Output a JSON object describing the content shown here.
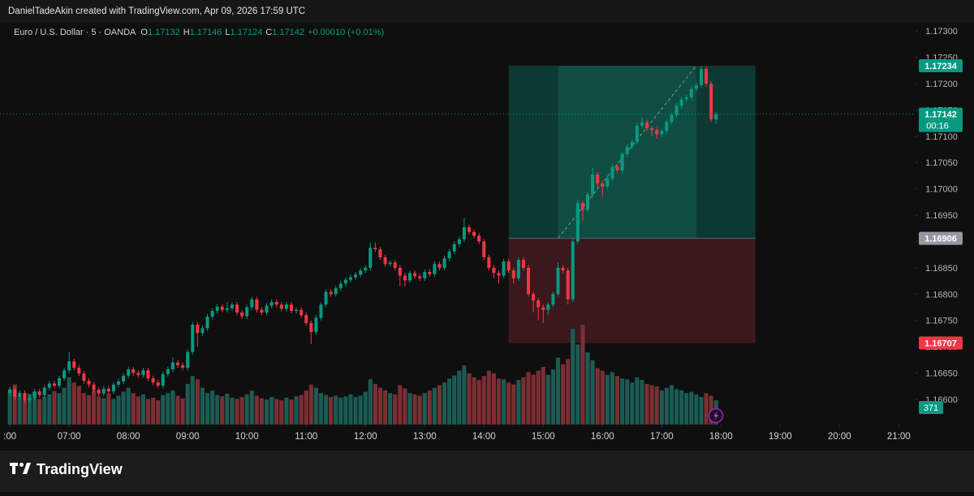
{
  "header": {
    "text": "DanielTadeAkin created with TradingView.com, Apr 09, 2026 17:59 UTC"
  },
  "chart_data": {
    "type": "candlestick",
    "symbol": "Euro / U.S. Dollar · 5 · OANDA",
    "ohlc_letters": [
      "O",
      "H",
      "L",
      "C"
    ],
    "change_label": "+0.00010 (+0.01%)",
    "countdown": "00:16",
    "up_color": "#089981",
    "down_color": "#f23645",
    "volume_up_color": "#1b5b53",
    "volume_down_color": "#7a2f33",
    "xlim": [
      350,
      1277
    ],
    "xticks": [
      {
        "value": 360,
        "label": ":00"
      },
      {
        "value": 420,
        "label": "07:00"
      },
      {
        "value": 480,
        "label": "08:00"
      },
      {
        "value": 540,
        "label": "09:00"
      },
      {
        "value": 600,
        "label": "10:00"
      },
      {
        "value": 660,
        "label": "11:00"
      },
      {
        "value": 720,
        "label": "12:00"
      },
      {
        "value": 780,
        "label": "13:00"
      },
      {
        "value": 840,
        "label": "14:00"
      },
      {
        "value": 900,
        "label": "15:00"
      },
      {
        "value": 960,
        "label": "16:00"
      },
      {
        "value": 1020,
        "label": "17:00"
      },
      {
        "value": 1080,
        "label": "18:00"
      },
      {
        "value": 1140,
        "label": "19:00"
      },
      {
        "value": 1200,
        "label": "20:00"
      },
      {
        "value": 1260,
        "label": "21:00"
      }
    ],
    "ylim": [
      1.16552,
      1.17325
    ],
    "yticks": [
      {
        "value": 1.166,
        "label": "1.16600"
      },
      {
        "value": 1.1665,
        "label": "1.16650"
      },
      {
        "value": 1.167,
        "label": "1.16700"
      },
      {
        "value": 1.1675,
        "label": "1.16750"
      },
      {
        "value": 1.168,
        "label": "1.16800"
      },
      {
        "value": 1.1685,
        "label": "1.16850"
      },
      {
        "value": 1.169,
        "label": "1.16900"
      },
      {
        "value": 1.1695,
        "label": "1.16950"
      },
      {
        "value": 1.17,
        "label": "1.17000"
      },
      {
        "value": 1.1705,
        "label": "1.17050"
      },
      {
        "value": 1.171,
        "label": "1.17100"
      },
      {
        "value": 1.1715,
        "label": "1.17150"
      },
      {
        "value": 1.172,
        "label": "1.17200"
      },
      {
        "value": 1.1725,
        "label": "1.17250"
      },
      {
        "value": 1.173,
        "label": "1.17300"
      }
    ],
    "volume_lim": [
      0,
      6200
    ],
    "position": {
      "entry": 1.16906,
      "target": 1.17234,
      "stop": 1.16707,
      "start": 865,
      "end": 1115,
      "filled_start": 915,
      "filled_end": 1055,
      "profit_color": "#0c3a33",
      "profit_fill_color": "#0f4d42",
      "loss_color": "#3a181c",
      "entry_color": "#5d606b"
    },
    "x": [
      360,
      365,
      370,
      375,
      380,
      385,
      390,
      395,
      400,
      405,
      410,
      415,
      420,
      425,
      430,
      435,
      440,
      445,
      450,
      455,
      460,
      465,
      470,
      475,
      480,
      485,
      490,
      495,
      500,
      505,
      510,
      515,
      520,
      525,
      530,
      535,
      540,
      545,
      550,
      555,
      560,
      565,
      570,
      575,
      580,
      585,
      590,
      595,
      600,
      605,
      610,
      615,
      620,
      625,
      630,
      635,
      640,
      645,
      650,
      655,
      660,
      665,
      670,
      675,
      680,
      685,
      690,
      695,
      700,
      705,
      710,
      715,
      720,
      725,
      730,
      735,
      740,
      745,
      750,
      755,
      760,
      765,
      770,
      775,
      780,
      785,
      790,
      795,
      800,
      805,
      810,
      815,
      820,
      825,
      830,
      835,
      840,
      845,
      850,
      855,
      860,
      865,
      870,
      875,
      880,
      885,
      890,
      895,
      900,
      905,
      910,
      915,
      920,
      925,
      930,
      935,
      940,
      945,
      950,
      955,
      960,
      965,
      970,
      975,
      980,
      985,
      990,
      995,
      1000,
      1005,
      1010,
      1015,
      1020,
      1025,
      1030,
      1035,
      1040,
      1045,
      1050,
      1055,
      1060,
      1065,
      1070,
      1075
    ],
    "ohlc": [
      [
        1.16612,
        1.16624,
        1.16607,
        1.16619
      ],
      [
        1.16619,
        1.16624,
        1.166,
        1.16605
      ],
      [
        1.16605,
        1.16617,
        1.166,
        1.16612
      ],
      [
        1.16612,
        1.16617,
        1.16593,
        1.16598
      ],
      [
        1.16598,
        1.16608,
        1.16593,
        1.16603
      ],
      [
        1.16603,
        1.1662,
        1.16598,
        1.16615
      ],
      [
        1.16615,
        1.1662,
        1.16603,
        1.16608
      ],
      [
        1.16608,
        1.16627,
        1.16603,
        1.16622
      ],
      [
        1.16622,
        1.16635,
        1.16617,
        1.1663
      ],
      [
        1.1663,
        1.16635,
        1.16621,
        1.16626
      ],
      [
        1.16626,
        1.16645,
        1.16621,
        1.1664
      ],
      [
        1.1664,
        1.1666,
        1.16635,
        1.16655
      ],
      [
        1.16655,
        1.1669,
        1.1665,
        1.16672
      ],
      [
        1.16672,
        1.16677,
        1.16655,
        1.1666
      ],
      [
        1.1666,
        1.16665,
        1.16644,
        1.16649
      ],
      [
        1.16649,
        1.16654,
        1.1663,
        1.16635
      ],
      [
        1.16635,
        1.1664,
        1.16623,
        1.16628
      ],
      [
        1.16628,
        1.16633,
        1.16613,
        1.16618
      ],
      [
        1.16618,
        1.16623,
        1.16606,
        1.16611
      ],
      [
        1.16611,
        1.16625,
        1.16606,
        1.1662
      ],
      [
        1.1662,
        1.16625,
        1.1661,
        1.16615
      ],
      [
        1.16615,
        1.16633,
        1.1661,
        1.16628
      ],
      [
        1.16628,
        1.16639,
        1.16623,
        1.16634
      ],
      [
        1.16634,
        1.1665,
        1.16629,
        1.16645
      ],
      [
        1.16645,
        1.16662,
        1.1664,
        1.16657
      ],
      [
        1.16657,
        1.16662,
        1.16645,
        1.1665
      ],
      [
        1.1665,
        1.16655,
        1.16641,
        1.16646
      ],
      [
        1.16646,
        1.1666,
        1.16641,
        1.16655
      ],
      [
        1.16655,
        1.1666,
        1.16635,
        1.1664
      ],
      [
        1.1664,
        1.16645,
        1.16627,
        1.16632
      ],
      [
        1.16632,
        1.16637,
        1.16621,
        1.16626
      ],
      [
        1.16626,
        1.16653,
        1.16621,
        1.16648
      ],
      [
        1.16648,
        1.16662,
        1.16643,
        1.16657
      ],
      [
        1.16657,
        1.1668,
        1.16652,
        1.1667
      ],
      [
        1.1667,
        1.16675,
        1.1666,
        1.16665
      ],
      [
        1.16665,
        1.1667,
        1.16655,
        1.1666
      ],
      [
        1.1666,
        1.16695,
        1.16655,
        1.1669
      ],
      [
        1.1669,
        1.16747,
        1.16685,
        1.16742
      ],
      [
        1.16742,
        1.16747,
        1.167,
        1.16726
      ],
      [
        1.16726,
        1.1674,
        1.16721,
        1.16735
      ],
      [
        1.16735,
        1.16762,
        1.1673,
        1.16757
      ],
      [
        1.16757,
        1.16773,
        1.16752,
        1.16768
      ],
      [
        1.16768,
        1.16781,
        1.16763,
        1.16776
      ],
      [
        1.16776,
        1.16781,
        1.16765,
        1.1677
      ],
      [
        1.1677,
        1.16785,
        1.16765,
        1.16773
      ],
      [
        1.16773,
        1.16785,
        1.16768,
        1.1678
      ],
      [
        1.1678,
        1.16785,
        1.1676,
        1.16765
      ],
      [
        1.16765,
        1.1677,
        1.16753,
        1.16758
      ],
      [
        1.16758,
        1.1678,
        1.16753,
        1.16775
      ],
      [
        1.16775,
        1.16795,
        1.1677,
        1.1679
      ],
      [
        1.1679,
        1.16795,
        1.16765,
        1.1677
      ],
      [
        1.1677,
        1.16775,
        1.1676,
        1.16765
      ],
      [
        1.16765,
        1.16783,
        1.1676,
        1.16778
      ],
      [
        1.16778,
        1.1679,
        1.16773,
        1.16785
      ],
      [
        1.16785,
        1.1679,
        1.16775,
        1.1678
      ],
      [
        1.1678,
        1.16785,
        1.16767,
        1.16772
      ],
      [
        1.16772,
        1.16785,
        1.16767,
        1.1678
      ],
      [
        1.1678,
        1.16785,
        1.16763,
        1.16768
      ],
      [
        1.16768,
        1.16775,
        1.16763,
        1.1677
      ],
      [
        1.1677,
        1.16775,
        1.16755,
        1.1676
      ],
      [
        1.1676,
        1.16765,
        1.1674,
        1.16745
      ],
      [
        1.16745,
        1.1675,
        1.16705,
        1.16728
      ],
      [
        1.16728,
        1.1676,
        1.16723,
        1.16755
      ],
      [
        1.16755,
        1.16785,
        1.1675,
        1.1678
      ],
      [
        1.1678,
        1.16809,
        1.16775,
        1.16804
      ],
      [
        1.16804,
        1.16809,
        1.16795,
        1.168
      ],
      [
        1.168,
        1.16816,
        1.16795,
        1.16811
      ],
      [
        1.16811,
        1.16825,
        1.16806,
        1.1682
      ],
      [
        1.1682,
        1.16832,
        1.16815,
        1.16827
      ],
      [
        1.16827,
        1.16837,
        1.16822,
        1.16832
      ],
      [
        1.16832,
        1.16842,
        1.16827,
        1.16837
      ],
      [
        1.16837,
        1.1685,
        1.16832,
        1.16845
      ],
      [
        1.16845,
        1.16855,
        1.1684,
        1.1685
      ],
      [
        1.1685,
        1.16898,
        1.16845,
        1.16888
      ],
      [
        1.16888,
        1.16898,
        1.1688,
        1.16885
      ],
      [
        1.16885,
        1.1689,
        1.16865,
        1.1687
      ],
      [
        1.1687,
        1.16875,
        1.16852,
        1.16857
      ],
      [
        1.16857,
        1.16865,
        1.16852,
        1.1686
      ],
      [
        1.1686,
        1.16865,
        1.16845,
        1.1685
      ],
      [
        1.1685,
        1.16855,
        1.16815,
        1.16835
      ],
      [
        1.16835,
        1.1684,
        1.16815,
        1.16826
      ],
      [
        1.16826,
        1.16845,
        1.16821,
        1.1684
      ],
      [
        1.1684,
        1.16845,
        1.16829,
        1.16834
      ],
      [
        1.16834,
        1.16839,
        1.16825,
        1.1683
      ],
      [
        1.1683,
        1.16847,
        1.16825,
        1.16842
      ],
      [
        1.16842,
        1.16847,
        1.16833,
        1.16838
      ],
      [
        1.16838,
        1.16862,
        1.16833,
        1.16857
      ],
      [
        1.16857,
        1.16862,
        1.16845,
        1.1685
      ],
      [
        1.1685,
        1.16873,
        1.16845,
        1.16868
      ],
      [
        1.16868,
        1.16886,
        1.16863,
        1.16881
      ],
      [
        1.16881,
        1.169,
        1.16876,
        1.16895
      ],
      [
        1.16895,
        1.16909,
        1.1689,
        1.16904
      ],
      [
        1.16904,
        1.16945,
        1.16899,
        1.16927
      ],
      [
        1.16927,
        1.16932,
        1.16913,
        1.16918
      ],
      [
        1.16918,
        1.16923,
        1.16906,
        1.16911
      ],
      [
        1.16911,
        1.16916,
        1.16895,
        1.169
      ],
      [
        1.169,
        1.16905,
        1.16865,
        1.1687
      ],
      [
        1.1687,
        1.16875,
        1.16845,
        1.1685
      ],
      [
        1.1685,
        1.16855,
        1.1683,
        1.1684
      ],
      [
        1.1684,
        1.16845,
        1.1682,
        1.16835
      ],
      [
        1.16835,
        1.16867,
        1.1683,
        1.16862
      ],
      [
        1.16862,
        1.16867,
        1.1684,
        1.16845
      ],
      [
        1.16845,
        1.1685,
        1.1682,
        1.1683
      ],
      [
        1.1683,
        1.1687,
        1.16825,
        1.16865
      ],
      [
        1.16865,
        1.1687,
        1.16845,
        1.1685
      ],
      [
        1.1685,
        1.16855,
        1.16795,
        1.168
      ],
      [
        1.168,
        1.16805,
        1.16765,
        1.16788
      ],
      [
        1.16788,
        1.16793,
        1.1675,
        1.16775
      ],
      [
        1.16775,
        1.1678,
        1.16745,
        1.1677
      ],
      [
        1.1677,
        1.16785,
        1.1676,
        1.1678
      ],
      [
        1.1678,
        1.16805,
        1.16775,
        1.168
      ],
      [
        1.168,
        1.1686,
        1.16795,
        1.1685
      ],
      [
        1.1685,
        1.16855,
        1.1684,
        1.16845
      ],
      [
        1.16845,
        1.1685,
        1.1678,
        1.1679
      ],
      [
        1.1679,
        1.16905,
        1.16785,
        1.169
      ],
      [
        1.169,
        1.1698,
        1.16895,
        1.16973
      ],
      [
        1.16973,
        1.16978,
        1.1694,
        1.1696
      ],
      [
        1.1696,
        1.16994,
        1.16955,
        1.16989
      ],
      [
        1.16989,
        1.1704,
        1.16984,
        1.17027
      ],
      [
        1.17027,
        1.17032,
        1.17,
        1.1701
      ],
      [
        1.1701,
        1.17015,
        1.16985,
        1.17004
      ],
      [
        1.17004,
        1.17025,
        1.16999,
        1.1702
      ],
      [
        1.1702,
        1.17047,
        1.17015,
        1.17042
      ],
      [
        1.17042,
        1.17047,
        1.1703,
        1.17035
      ],
      [
        1.17035,
        1.17071,
        1.1703,
        1.17066
      ],
      [
        1.17066,
        1.17085,
        1.17061,
        1.1708
      ],
      [
        1.1708,
        1.17094,
        1.17075,
        1.17089
      ],
      [
        1.17089,
        1.17125,
        1.17084,
        1.1712
      ],
      [
        1.1712,
        1.17135,
        1.17115,
        1.17127
      ],
      [
        1.17127,
        1.17132,
        1.1711,
        1.17115
      ],
      [
        1.17115,
        1.1712,
        1.171,
        1.17112
      ],
      [
        1.17112,
        1.17117,
        1.17095,
        1.17104
      ],
      [
        1.17104,
        1.17115,
        1.17099,
        1.1711
      ],
      [
        1.1711,
        1.17132,
        1.17105,
        1.17127
      ],
      [
        1.17127,
        1.17145,
        1.17122,
        1.1714
      ],
      [
        1.1714,
        1.17163,
        1.17135,
        1.17158
      ],
      [
        1.17158,
        1.17175,
        1.17153,
        1.1717
      ],
      [
        1.1717,
        1.17179,
        1.17165,
        1.17174
      ],
      [
        1.17174,
        1.17195,
        1.17169,
        1.1719
      ],
      [
        1.1719,
        1.17202,
        1.17185,
        1.17197
      ],
      [
        1.17197,
        1.17234,
        1.17192,
        1.17228
      ],
      [
        1.17228,
        1.17233,
        1.17195,
        1.172
      ],
      [
        1.172,
        1.17205,
        1.17127,
        1.17132
      ],
      [
        1.17132,
        1.17146,
        1.17124,
        1.17142
      ]
    ],
    "volume": [
      520,
      610,
      430,
      380,
      470,
      500,
      390,
      420,
      460,
      510,
      480,
      560,
      720,
      640,
      590,
      480,
      450,
      520,
      430,
      400,
      470,
      390,
      440,
      500,
      560,
      480,
      430,
      460,
      390,
      410,
      370,
      450,
      480,
      520,
      440,
      400,
      620,
      740,
      690,
      560,
      480,
      520,
      450,
      430,
      470,
      410,
      390,
      420,
      460,
      520,
      440,
      400,
      380,
      420,
      390,
      370,
      410,
      380,
      430,
      450,
      520,
      610,
      560,
      480,
      450,
      420,
      440,
      410,
      430,
      460,
      420,
      440,
      500,
      690,
      620,
      560,
      520,
      480,
      460,
      600,
      550,
      480,
      460,
      440,
      480,
      520,
      560,
      600,
      640,
      700,
      750,
      820,
      900,
      780,
      720,
      680,
      740,
      820,
      780,
      700,
      690,
      640,
      610,
      680,
      720,
      800,
      760,
      820,
      880,
      760,
      840,
      1020,
      920,
      1000,
      1460,
      1220,
      1520,
      1100,
      980,
      860,
      820,
      760,
      800,
      740,
      700,
      690,
      640,
      720,
      680,
      620,
      600,
      580,
      520,
      560,
      600,
      540,
      520,
      480,
      500,
      460,
      420,
      480,
      440,
      371
    ]
  },
  "footer": {
    "logo": "TradingView"
  }
}
